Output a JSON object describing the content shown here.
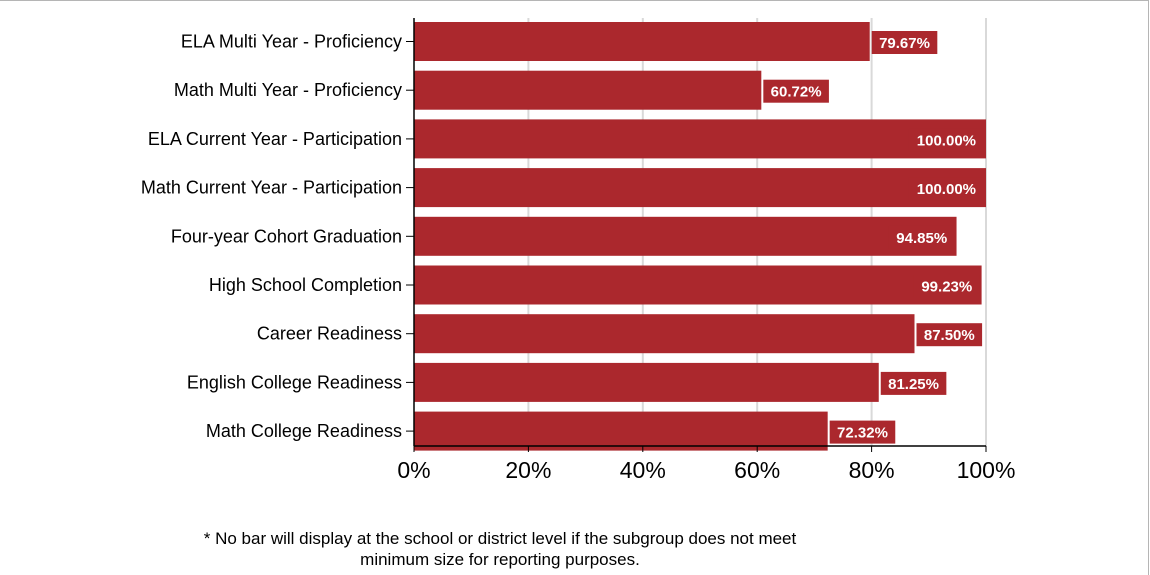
{
  "chart_data": {
    "type": "bar",
    "orientation": "horizontal",
    "categories": [
      "ELA Multi Year - Proficiency",
      "Math Multi Year - Proficiency",
      "ELA Current Year - Participation",
      "Math Current Year - Participation",
      "Four-year Cohort Graduation",
      "High School Completion",
      "Career Readiness",
      "English College Readiness",
      "Math College Readiness"
    ],
    "values": [
      79.67,
      60.72,
      100.0,
      100.0,
      94.85,
      99.23,
      87.5,
      81.25,
      72.32
    ],
    "value_labels": [
      "79.67%",
      "60.72%",
      "100.00%",
      "100.00%",
      "94.85%",
      "99.23%",
      "87.50%",
      "81.25%",
      "72.32%"
    ],
    "xlim": [
      0,
      100
    ],
    "xticks": [
      0,
      20,
      40,
      60,
      80,
      100
    ],
    "xtick_labels": [
      "0%",
      "20%",
      "40%",
      "60%",
      "80%",
      "100%"
    ],
    "grid": true,
    "bar_color": "#ab282d",
    "gridline_color": "#d9d9d9"
  },
  "footnote": {
    "line1": "* No bar will display at the school or district level if the subgroup does not meet",
    "line2": "minimum size for reporting purposes."
  }
}
